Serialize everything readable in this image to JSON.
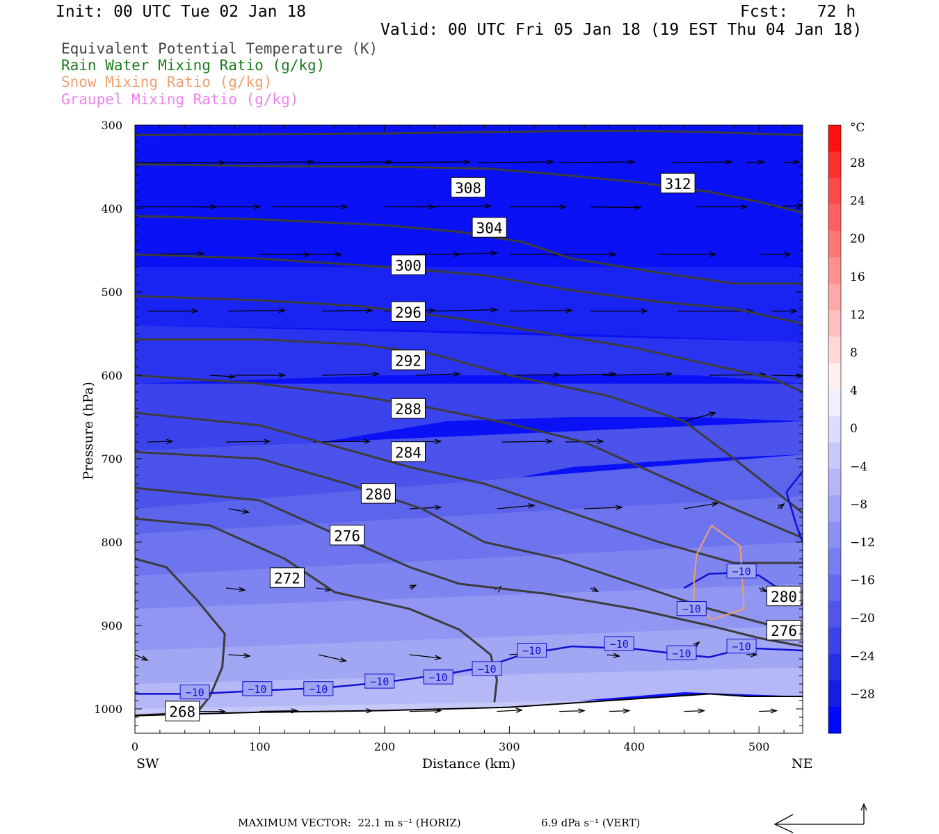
{
  "header": {
    "init": "Init: 00 UTC Tue 02 Jan 18",
    "fcst": "Fcst:   72 h",
    "valid": "Valid: 00 UTC Fri 05 Jan 18 (19 EST Thu 04 Jan 18)"
  },
  "legend": [
    {
      "label": "Equivalent Potential Temperature (K)",
      "color": "#444444"
    },
    {
      "label": "Rain Water Mixing Ratio (g/kg)",
      "color": "#1a7a1a"
    },
    {
      "label": "Snow Mixing Ratio (g/kg)",
      "color": "#f0a070"
    },
    {
      "label": "Graupel Mixing Ratio (g/kg)",
      "color": "#ee82ee"
    }
  ],
  "chart_data": {
    "type": "contour-cross-section",
    "xlabel": "Distance (km)",
    "ylabel": "Pressure (hPa)",
    "xlim": [
      0,
      535
    ],
    "ylim": [
      1030,
      300
    ],
    "x_ticks": [
      "0",
      "100",
      "200",
      "300",
      "400",
      "500"
    ],
    "y_ticks": [
      "300",
      "400",
      "500",
      "600",
      "700",
      "800",
      "900",
      "1000"
    ],
    "endpoint_left": "SW",
    "endpoint_right": "NE",
    "colorbar": {
      "unit": "°C",
      "labels": [
        "28",
        "24",
        "20",
        "16",
        "12",
        "8",
        "4",
        "0",
        "−4",
        "−8",
        "−12",
        "−16",
        "−20",
        "−24",
        "−28"
      ]
    },
    "theta_e_lines": [
      {
        "label": "312",
        "lx": 435,
        "lp": 370,
        "pts": [
          [
            0,
            312
          ],
          [
            100,
            311
          ],
          [
            200,
            310
          ],
          [
            300,
            308
          ],
          [
            350,
            307
          ],
          [
            400,
            307
          ],
          [
            450,
            308
          ],
          [
            535,
            312
          ]
        ]
      },
      {
        "label": "308",
        "lx": 267,
        "lp": 375,
        "pts": [
          [
            0,
            347
          ],
          [
            100,
            349
          ],
          [
            200,
            350
          ],
          [
            280,
            352
          ],
          [
            330,
            358
          ],
          [
            400,
            368
          ],
          [
            460,
            380
          ],
          [
            500,
            392
          ],
          [
            535,
            405
          ]
        ]
      },
      {
        "label": "304",
        "lx": 284,
        "lp": 423,
        "pts": [
          [
            0,
            409
          ],
          [
            100,
            413
          ],
          [
            200,
            420
          ],
          [
            260,
            428
          ],
          [
            310,
            440
          ],
          [
            350,
            460
          ],
          [
            420,
            477
          ],
          [
            480,
            490
          ],
          [
            535,
            490
          ]
        ]
      },
      {
        "label": "300",
        "lx": 219,
        "lp": 468,
        "pts": [
          [
            0,
            455
          ],
          [
            100,
            460
          ],
          [
            200,
            470
          ],
          [
            280,
            480
          ],
          [
            350,
            498
          ],
          [
            420,
            512
          ],
          [
            480,
            520
          ],
          [
            535,
            538
          ]
        ]
      },
      {
        "label": "296",
        "lx": 219,
        "lp": 524,
        "pts": [
          [
            0,
            505
          ],
          [
            100,
            510
          ],
          [
            180,
            517
          ],
          [
            260,
            532
          ],
          [
            320,
            547
          ],
          [
            400,
            567
          ],
          [
            460,
            587
          ],
          [
            510,
            603
          ],
          [
            535,
            620
          ]
        ]
      },
      {
        "label": "292",
        "lx": 219,
        "lp": 582,
        "pts": [
          [
            0,
            557
          ],
          [
            100,
            557
          ],
          [
            180,
            563
          ],
          [
            240,
            575
          ],
          [
            300,
            600
          ],
          [
            380,
            625
          ],
          [
            440,
            655
          ],
          [
            480,
            700
          ],
          [
            535,
            765
          ]
        ]
      },
      {
        "label": "288",
        "lx": 219,
        "lp": 640,
        "pts": [
          [
            0,
            600
          ],
          [
            100,
            610
          ],
          [
            180,
            625
          ],
          [
            240,
            640
          ],
          [
            300,
            658
          ],
          [
            360,
            680
          ],
          [
            420,
            720
          ],
          [
            480,
            760
          ],
          [
            535,
            795
          ]
        ]
      },
      {
        "label": "284",
        "lx": 219,
        "lp": 692,
        "pts": [
          [
            0,
            645
          ],
          [
            100,
            660
          ],
          [
            160,
            685
          ],
          [
            220,
            710
          ],
          [
            280,
            730
          ],
          [
            340,
            760
          ],
          [
            420,
            800
          ],
          [
            480,
            825
          ],
          [
            535,
            825
          ]
        ]
      },
      {
        "label": "280",
        "lx": 195,
        "lp": 742,
        "pts": [
          [
            0,
            692
          ],
          [
            100,
            700
          ],
          [
            170,
            730
          ],
          [
            230,
            760
          ],
          [
            280,
            800
          ],
          [
            340,
            820
          ],
          [
            400,
            850
          ],
          [
            460,
            880
          ],
          [
            510,
            900
          ],
          [
            535,
            905
          ]
        ]
      },
      {
        "label": "276",
        "lx": 170,
        "lp": 792,
        "pts": [
          [
            0,
            735
          ],
          [
            100,
            750
          ],
          [
            160,
            790
          ],
          [
            220,
            830
          ],
          [
            260,
            850
          ],
          [
            330,
            862
          ],
          [
            400,
            880
          ],
          [
            460,
            900
          ],
          [
            500,
            915
          ],
          [
            535,
            925
          ]
        ]
      },
      {
        "label": "272",
        "lx": 122,
        "lp": 843,
        "pts": [
          [
            0,
            772
          ],
          [
            60,
            780
          ],
          [
            120,
            820
          ],
          [
            160,
            860
          ],
          [
            220,
            880
          ],
          [
            260,
            905
          ],
          [
            285,
            935
          ],
          [
            290,
            965
          ],
          [
            288,
            992
          ]
        ]
      },
      {
        "label": "268",
        "lx": 38,
        "lp": 1003,
        "pts": [
          [
            0,
            820
          ],
          [
            25,
            830
          ],
          [
            50,
            870
          ],
          [
            72,
            910
          ],
          [
            70,
            950
          ],
          [
            60,
            985
          ],
          [
            50,
            1004
          ],
          [
            0,
            1008
          ]
        ]
      }
    ],
    "temp_minus10_line": {
      "label": "−10",
      "pts": [
        [
          0,
          982
        ],
        [
          50,
          982
        ],
        [
          100,
          978
        ],
        [
          150,
          975
        ],
        [
          200,
          968
        ],
        [
          250,
          958
        ],
        [
          280,
          950
        ],
        [
          310,
          935
        ],
        [
          350,
          925
        ],
        [
          400,
          928
        ],
        [
          440,
          935
        ],
        [
          460,
          938
        ],
        [
          490,
          927
        ],
        [
          535,
          930
        ]
      ],
      "label_at": [
        [
          48,
          980
        ],
        [
          98,
          976
        ],
        [
          147,
          976
        ],
        [
          196,
          967
        ],
        [
          243,
          962
        ],
        [
          282,
          952
        ],
        [
          318,
          930
        ],
        [
          388,
          922
        ],
        [
          438,
          933
        ],
        [
          486,
          925
        ]
      ]
    },
    "temp_minus10_upper": {
      "pts": [
        [
          440,
          855
        ],
        [
          460,
          838
        ],
        [
          480,
          837
        ],
        [
          500,
          840
        ],
        [
          520,
          860
        ],
        [
          535,
          875
        ]
      ],
      "label_at": [
        [
          446,
          880
        ],
        [
          486,
          835
        ]
      ]
    },
    "temp_minus10_right": {
      "pts": [
        [
          535,
          715
        ],
        [
          522,
          740
        ],
        [
          530,
          780
        ],
        [
          535,
          800
        ]
      ]
    },
    "snow_contour": {
      "pts": [
        [
          450,
          815
        ],
        [
          462,
          780
        ],
        [
          485,
          805
        ],
        [
          488,
          880
        ],
        [
          462,
          893
        ],
        [
          448,
          870
        ],
        [
          448,
          845
        ],
        [
          450,
          815
        ]
      ]
    }
  },
  "footer": {
    "max_vector": "MAXIMUM VECTOR:  22.1 m s⁻¹ (HORIZ)",
    "vert": "6.9 dPa s⁻¹ (VERT)"
  }
}
